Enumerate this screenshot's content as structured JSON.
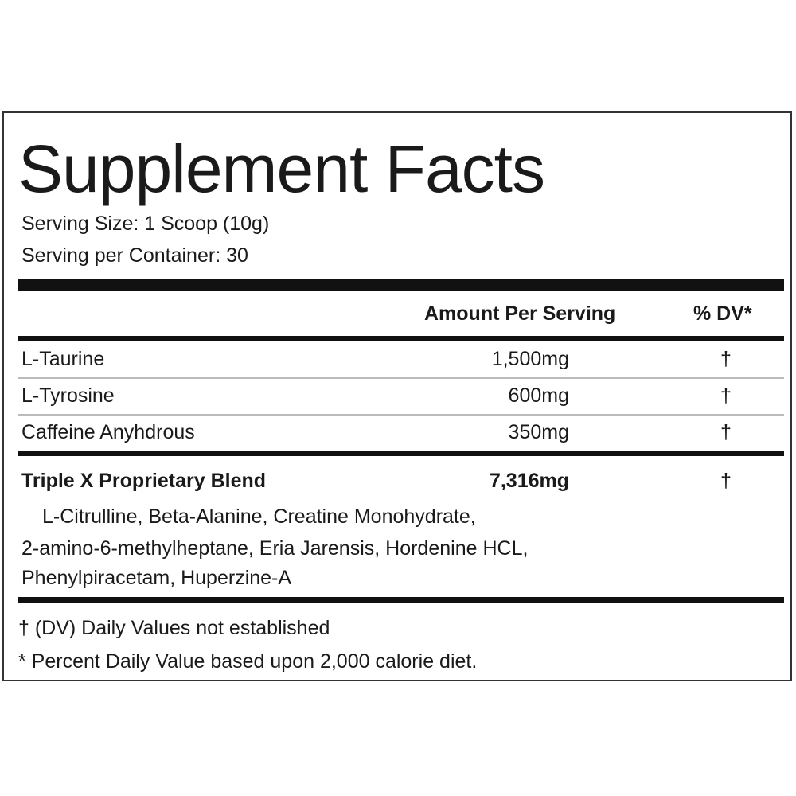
{
  "title": "Supplement Facts",
  "serving_size": "Serving Size: 1 Scoop (10g)",
  "servings": "Serving per Container: 30",
  "header": {
    "amount": "Amount Per Serving",
    "dv": "% DV*"
  },
  "rows": [
    {
      "name": "L-Taurine",
      "amount": "1,500mg",
      "dv": "†"
    },
    {
      "name": "L-Tyrosine",
      "amount": "600mg",
      "dv": "†"
    },
    {
      "name": "Caffeine Anyhdrous",
      "amount": "350mg",
      "dv": "†"
    }
  ],
  "blend": {
    "name": "Triple X Proprietary Blend",
    "amount": "7,316mg",
    "dv": "†",
    "ingredients": [
      "L-Citrulline, Beta-Alanine, Creatine Monohydrate,",
      "2-amino-6-methylheptane, Eria Jarensis, Hordenine HCL,",
      "Phenylpiracetam, Huperzine-A"
    ]
  },
  "footnotes": [
    "† (DV) Daily Values not established",
    "* Percent Daily Value based upon 2,000 calorie diet."
  ]
}
